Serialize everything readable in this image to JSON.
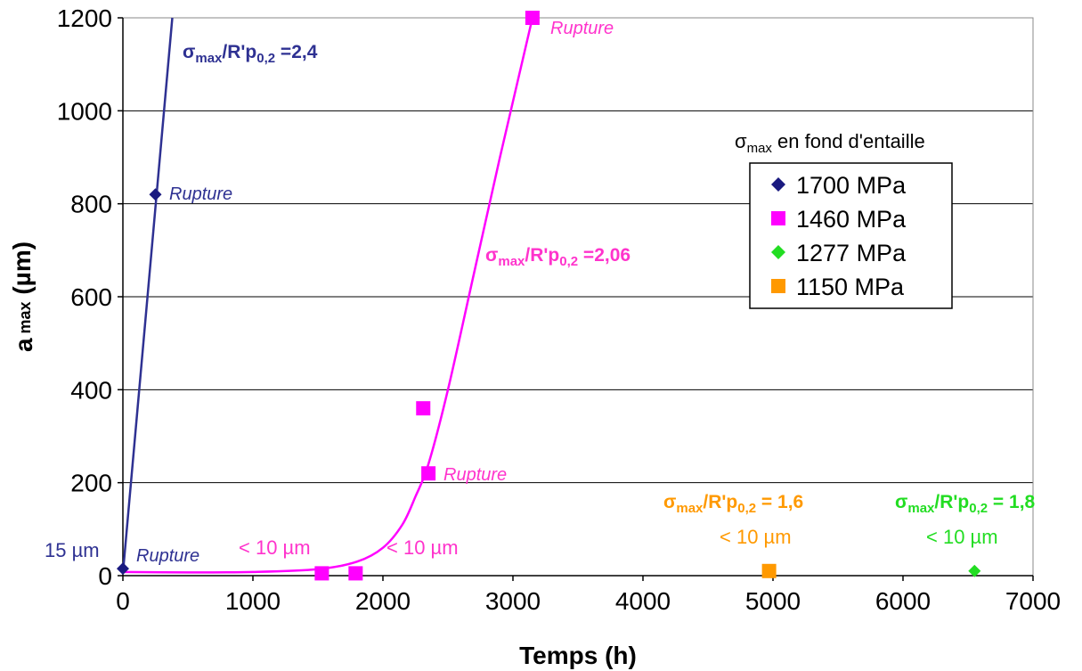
{
  "chart_data": {
    "type": "scatter",
    "xlabel": "Temps (h)",
    "ylabel_main": "a",
    "ylabel_sub": "max",
    "ylabel_unit": "(µm)",
    "xlim": [
      0,
      7000
    ],
    "ylim": [
      0,
      1200
    ],
    "x_ticks": [
      "0",
      "1000",
      "2000",
      "3000",
      "4000",
      "5000",
      "6000",
      "7000"
    ],
    "y_ticks": [
      "0",
      "200",
      "400",
      "600",
      "800",
      "1000",
      "1200"
    ],
    "y_tick_values": [
      0,
      200,
      400,
      600,
      800,
      1000,
      1200
    ],
    "x_tick_values": [
      0,
      1000,
      2000,
      3000,
      4000,
      5000,
      6000,
      7000
    ],
    "grid": "horizontal",
    "legend_title_sym": "σ",
    "legend_title_sub": "max",
    "legend_title_rest": " en fond d'entaille",
    "legend_position": "right",
    "series": [
      {
        "name": "1700 MPa",
        "color": "#1a1a80",
        "marker": "diamond",
        "points": [
          [
            0,
            15
          ],
          [
            250,
            820
          ]
        ]
      },
      {
        "name": "1460 MPa",
        "color": "#ff00ff",
        "marker": "square",
        "points": [
          [
            1530,
            5
          ],
          [
            1790,
            5
          ],
          [
            2310,
            360
          ],
          [
            2350,
            220
          ],
          [
            3150,
            1200
          ]
        ]
      },
      {
        "name": "1277 MPa",
        "color": "#22dd22",
        "marker": "diamond",
        "points": [
          [
            6550,
            10
          ]
        ]
      },
      {
        "name": "1150 MPa",
        "color": "#ff9900",
        "marker": "square",
        "points": [
          [
            4970,
            10
          ]
        ]
      }
    ],
    "curves": [
      {
        "color": "#2e3192",
        "points": [
          [
            0,
            5
          ],
          [
            380,
            1200
          ]
        ]
      },
      {
        "color": "#ff00ff",
        "points": [
          [
            0,
            8
          ],
          [
            500,
            7
          ],
          [
            1000,
            8
          ],
          [
            1500,
            14
          ],
          [
            1800,
            30
          ],
          [
            2000,
            60
          ],
          [
            2150,
            110
          ],
          [
            2250,
            170
          ],
          [
            2350,
            240
          ],
          [
            2500,
            400
          ],
          [
            2700,
            650
          ],
          [
            2900,
            900
          ],
          [
            3050,
            1080
          ],
          [
            3150,
            1200
          ]
        ]
      }
    ],
    "annotations": {
      "rupture_labels": [
        "Rupture",
        "Rupture",
        "Rupture",
        "Rupture"
      ],
      "ratio_sym": "σ",
      "ratio_sub": "max",
      "ratio_mid": "/R'p",
      "ratio_sub2": "0,2",
      "ratio_blue": " =2,4",
      "ratio_magenta": " =2,06",
      "ratio_orange": " = 1,6",
      "ratio_green": " = 1,8",
      "fifteen_um": "15 µm",
      "lt10": [
        "< 10 µm",
        "< 10 µm",
        "< 10 µm",
        "< 10 µm"
      ]
    }
  }
}
